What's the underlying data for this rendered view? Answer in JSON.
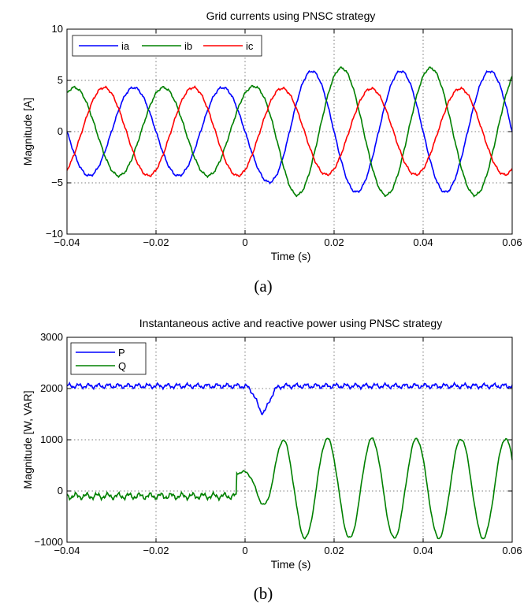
{
  "chart_data": [
    {
      "id": "a",
      "type": "line",
      "title": "Grid currents using PNSC strategy",
      "xlabel": "Time (s)",
      "ylabel": "Magnitude [A]",
      "caption": "(a)",
      "xlim": [
        -0.04,
        0.06
      ],
      "ylim": [
        -10,
        10
      ],
      "xticks": [
        -0.04,
        -0.02,
        0,
        0.02,
        0.04,
        0.06
      ],
      "xtick_labels": [
        "−0.04",
        "−0.02",
        "0",
        "0.02",
        "0.04",
        "0.06"
      ],
      "yticks": [
        -10,
        -5,
        0,
        5,
        10
      ],
      "ytick_labels": [
        "−10",
        "−5",
        "0",
        "5",
        "10"
      ],
      "grid": true,
      "legend": {
        "placement": "top-left",
        "orientation": "horizontal"
      },
      "series": [
        {
          "name": "ia",
          "color": "#0000ff",
          "frequency_hz": 50,
          "phase_deg": 0,
          "amplitude_before": 4.3,
          "amplitude_after": 5.9,
          "transition": [
            0.0,
            0.012
          ],
          "ripple": 0.15
        },
        {
          "name": "ib",
          "color": "#008000",
          "frequency_hz": 50,
          "phase_deg": -120,
          "amplitude_before": 4.3,
          "amplitude_after": 6.2,
          "transition": [
            0.0,
            0.012
          ],
          "ripple": 0.15
        },
        {
          "name": "ic",
          "color": "#ff0000",
          "frequency_hz": 50,
          "phase_deg": 120,
          "amplitude_before": 4.3,
          "amplitude_after": 4.2,
          "transition": [
            0.0,
            0.012
          ],
          "ripple": 0.15
        }
      ]
    },
    {
      "id": "b",
      "type": "line",
      "title": "Instantaneous active and reactive power using PNSC strategy",
      "xlabel": "Time (s)",
      "ylabel": "Magnitude [W, VAR]",
      "caption": "(b)",
      "xlim": [
        -0.04,
        0.06
      ],
      "ylim": [
        -1000,
        3000
      ],
      "xticks": [
        -0.04,
        -0.02,
        0,
        0.02,
        0.04,
        0.06
      ],
      "xtick_labels": [
        "−0.04",
        "−0.02",
        "0",
        "0.02",
        "0.04",
        "0.06"
      ],
      "yticks": [
        -1000,
        0,
        1000,
        2000,
        3000
      ],
      "ytick_labels": [
        "−1000",
        "0",
        "1000",
        "2000",
        "3000"
      ],
      "grid": true,
      "legend": {
        "placement": "top-left",
        "orientation": "vertical"
      },
      "series": [
        {
          "name": "P",
          "color": "#0000ff",
          "mean": 2050,
          "ripple": 60,
          "dip_time": 0.004,
          "dip_min": 1540,
          "dip_width": 0.004
        },
        {
          "name": "Q",
          "color": "#008000",
          "mean_before": -100,
          "ripple_before": 80,
          "step_time": -0.002,
          "step_value": 350,
          "osc_mean_after": 50,
          "osc_amplitude_after": 970,
          "osc_frequency_hz": 100
        }
      ]
    }
  ]
}
